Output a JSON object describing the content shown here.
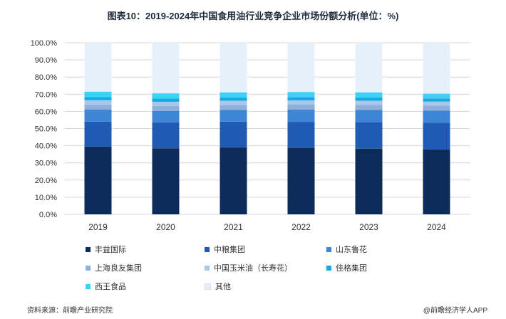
{
  "title": "图表10：2019-2024年中国食用油行业竞争企业市场份额分析(单位：%)",
  "source": "资料来源：前瞻产业研究院",
  "brand": "@前瞻经济学人APP",
  "chart_data": {
    "type": "bar",
    "stacked": true,
    "categories": [
      "2019",
      "2020",
      "2021",
      "2022",
      "2023",
      "2024"
    ],
    "y_tick_labels": [
      "0.0%",
      "10.0%",
      "20.0%",
      "30.0%",
      "40.0%",
      "50.0%",
      "60.0%",
      "70.0%",
      "80.0%",
      "90.0%",
      "100.0%"
    ],
    "ylim": [
      0,
      100
    ],
    "grid": true,
    "legend_placement": "bottom",
    "series": [
      {
        "name": "丰益国际",
        "color": "#0b2c5a",
        "values": [
          39.5,
          38.5,
          38.8,
          38.6,
          38.3,
          37.8
        ]
      },
      {
        "name": "中粮集团",
        "color": "#1f5bb5",
        "values": [
          14.5,
          15.0,
          15.2,
          15.3,
          15.4,
          15.5
        ]
      },
      {
        "name": "山东鲁花",
        "color": "#3d86d6",
        "values": [
          7.0,
          6.8,
          6.9,
          7.1,
          7.2,
          7.2
        ]
      },
      {
        "name": "上海良友集团",
        "color": "#8fb0dc",
        "values": [
          3.0,
          2.9,
          2.9,
          2.9,
          2.8,
          2.8
        ]
      },
      {
        "name": "中国玉米油（长寿花）",
        "color": "#a9c7ea",
        "values": [
          2.5,
          2.4,
          2.4,
          2.5,
          2.5,
          2.4
        ]
      },
      {
        "name": "佳格集团",
        "color": "#19a8e0",
        "values": [
          1.8,
          1.9,
          1.9,
          1.8,
          1.9,
          1.8
        ]
      },
      {
        "name": "西王食品",
        "color": "#3fd0f7",
        "values": [
          3.2,
          3.0,
          3.0,
          3.1,
          3.0,
          2.8
        ]
      },
      {
        "name": "其他",
        "color": "#e6f0fa",
        "values": [
          28.5,
          29.5,
          28.9,
          28.7,
          28.9,
          29.7
        ]
      }
    ]
  }
}
